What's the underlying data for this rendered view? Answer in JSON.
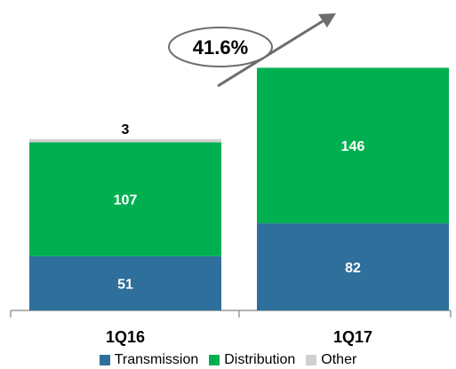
{
  "chart_data": {
    "type": "bar",
    "stacked": true,
    "categories": [
      "1Q16",
      "1Q17"
    ],
    "series": [
      {
        "name": "Transmission",
        "values": [
          51,
          82
        ],
        "color": "#2e6f9b"
      },
      {
        "name": "Distribution",
        "values": [
          107,
          146
        ],
        "color": "#00b050"
      },
      {
        "name": "Other",
        "values": [
          3,
          0
        ],
        "color": "#d0d0d0"
      }
    ],
    "data_labels": {
      "1Q16": {
        "Transmission": "51",
        "Distribution": "107",
        "Other": "3"
      },
      "1Q17": {
        "Transmission": "82",
        "Distribution": "146"
      }
    },
    "growth_annotation": "41.6%",
    "legend_position": "bottom",
    "grid": false,
    "ylim": [
      0,
      234
    ]
  }
}
